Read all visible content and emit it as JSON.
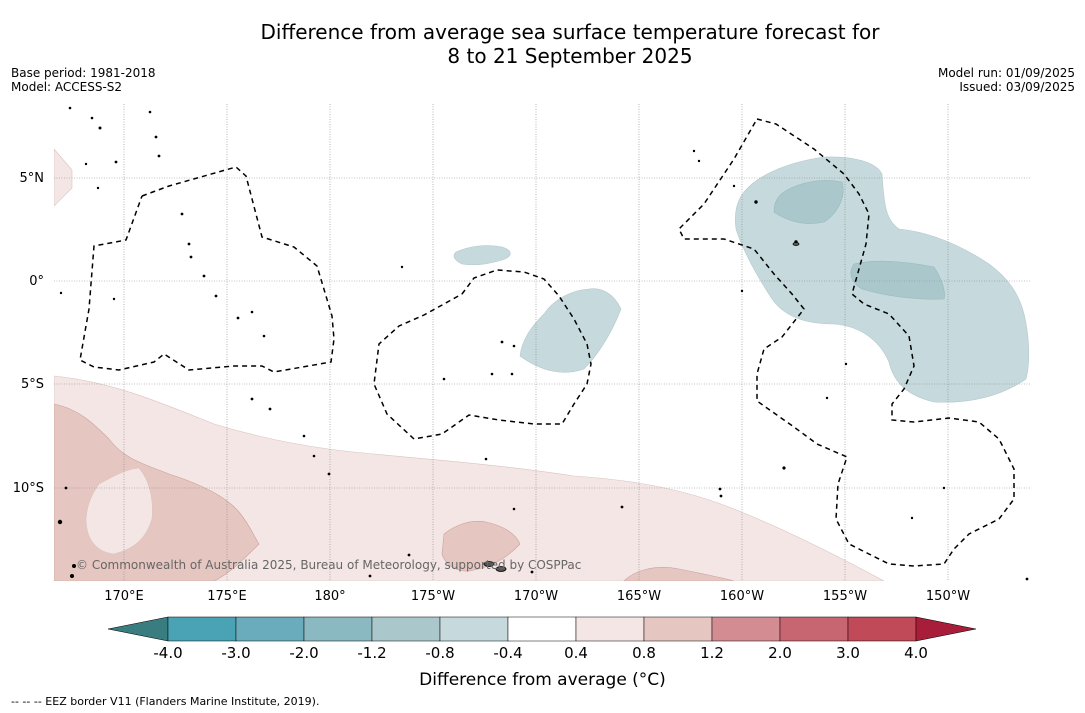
{
  "title_line1": "Difference from average sea surface temperature forecast for",
  "title_line2": "8 to 21 September 2025",
  "base_period": "Base period: 1981-2018",
  "model": "Model: ACCESS-S2",
  "model_run": "Model run: 01/09/2025",
  "issued": "Issued: 03/09/2025",
  "lat_labels": [
    "5°N",
    "0°",
    "5°S",
    "10°S"
  ],
  "lon_labels": [
    "170°E",
    "175°E",
    "180°",
    "175°W",
    "170°W",
    "165°W",
    "160°W",
    "155°W",
    "150°W"
  ],
  "copyright": "© Commonwealth of Australia 2025, Bureau of Meteorology, supported by COSPPac",
  "colorbar": {
    "ticks": [
      "-4.0",
      "-3.0",
      "-2.0",
      "-1.2",
      "-0.8",
      "-0.4",
      "0.4",
      "0.8",
      "1.2",
      "2.0",
      "3.0",
      "4.0"
    ],
    "colors": [
      "#3a7d80",
      "#4aa3b4",
      "#6aacbc",
      "#8bb9c1",
      "#aac8cc",
      "#c6d9dc",
      "#ffffff",
      "#f3e6e4",
      "#e6c6c1",
      "#d38c92",
      "#c76671",
      "#c04a58",
      "#a81e3a"
    ],
    "label": "Difference from average (°C)"
  },
  "footnote": "--  --  -- EEZ border V11 (Flanders Marine Institute, 2019)."
}
